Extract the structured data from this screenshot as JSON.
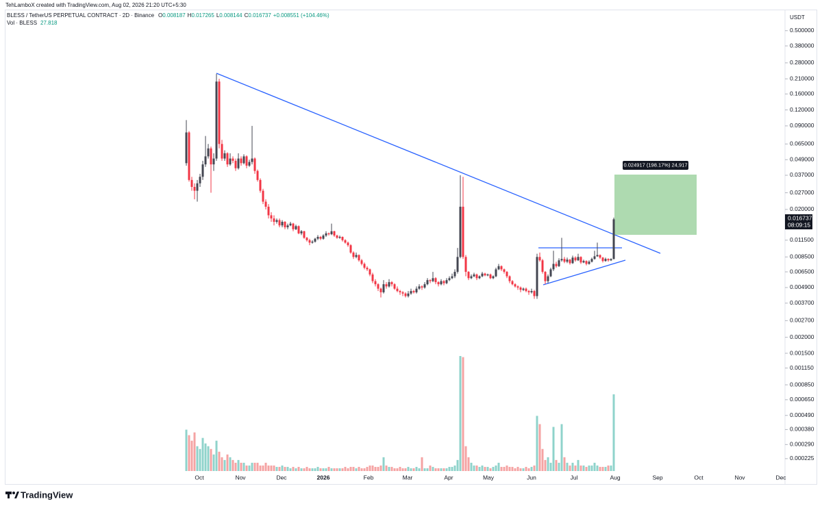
{
  "chart_data": {
    "type": "candlestick",
    "credit": "TehLamboX created with TradingView.com, Aug 02, 2026 21:20 UTC+5:30",
    "title": "BLESS / TetherUS PERPETUAL CONTRACT · 2D · Binance",
    "ohlc_labels": [
      "O",
      "H",
      "L",
      "C"
    ],
    "change_label": "+0.008551 (+104.46%)",
    "volume_label": "Vol · BLESS",
    "currency": "USDT",
    "countdown": "08:09:15",
    "measure_label": "0.024917 (198.17%) 24,917",
    "brand": "TradingView",
    "log_scale": true,
    "grid": false,
    "up_color": "#434651",
    "down_color": "#f23645",
    "volume_up_color": "#8fd3cb",
    "volume_down_color": "#f5a3a3",
    "ylim": [
      0.00018,
      0.6
    ],
    "yticks": [
      {
        "value": 0.5,
        "label": "0.500000"
      },
      {
        "value": 0.38,
        "label": "0.380000"
      },
      {
        "value": 0.28,
        "label": "0.280000"
      },
      {
        "value": 0.21,
        "label": "0.210000"
      },
      {
        "value": 0.16,
        "label": "0.160000"
      },
      {
        "value": 0.12,
        "label": "0.120000"
      },
      {
        "value": 0.09,
        "label": "0.090000"
      },
      {
        "value": 0.065,
        "label": "0.065000"
      },
      {
        "value": 0.049,
        "label": "0.049000"
      },
      {
        "value": 0.037,
        "label": "0.037000"
      },
      {
        "value": 0.027,
        "label": "0.027000"
      },
      {
        "value": 0.02,
        "label": "0.020000"
      },
      {
        "value": 0.0115,
        "label": "0.011500"
      },
      {
        "value": 0.0085,
        "label": "0.008500"
      },
      {
        "value": 0.0065,
        "label": "0.006500"
      },
      {
        "value": 0.0049,
        "label": "0.004900"
      },
      {
        "value": 0.0037,
        "label": "0.003700"
      },
      {
        "value": 0.0027,
        "label": "0.002700"
      },
      {
        "value": 0.002,
        "label": "0.002000"
      },
      {
        "value": 0.0015,
        "label": "0.001500"
      },
      {
        "value": 0.00115,
        "label": "0.001150"
      },
      {
        "value": 0.00085,
        "label": "0.000850"
      },
      {
        "value": 0.00065,
        "label": "0.000650"
      },
      {
        "value": 0.00049,
        "label": "0.000490"
      },
      {
        "value": 0.00038,
        "label": "0.000380"
      },
      {
        "value": 0.00029,
        "label": "0.000290"
      },
      {
        "value": 0.000225,
        "label": "0.000225"
      }
    ],
    "xticks": [
      "Oct",
      "Nov",
      "Dec",
      "2026",
      "Feb",
      "Mar",
      "Apr",
      "May",
      "Jun",
      "Jul",
      "Aug",
      "Sep",
      "Oct",
      "Nov",
      "Dec"
    ],
    "candles": [
      [
        0.046,
        0.1,
        0.044,
        0.08
      ],
      [
        0.08,
        0.082,
        0.033,
        0.034
      ],
      [
        0.034,
        0.036,
        0.028,
        0.03
      ],
      [
        0.03,
        0.032,
        0.024,
        0.028
      ],
      [
        0.028,
        0.034,
        0.023,
        0.032
      ],
      [
        0.032,
        0.038,
        0.03,
        0.036
      ],
      [
        0.036,
        0.048,
        0.034,
        0.045
      ],
      [
        0.045,
        0.075,
        0.043,
        0.052
      ],
      [
        0.052,
        0.065,
        0.05,
        0.06
      ],
      [
        0.06,
        0.062,
        0.027,
        0.045
      ],
      [
        0.045,
        0.055,
        0.04,
        0.05
      ],
      [
        0.05,
        0.23,
        0.048,
        0.2
      ],
      [
        0.2,
        0.21,
        0.06,
        0.065
      ],
      [
        0.065,
        0.07,
        0.048,
        0.05
      ],
      [
        0.05,
        0.058,
        0.048,
        0.055
      ],
      [
        0.055,
        0.056,
        0.043,
        0.045
      ],
      [
        0.045,
        0.055,
        0.044,
        0.05
      ],
      [
        0.05,
        0.052,
        0.046,
        0.048
      ],
      [
        0.048,
        0.05,
        0.04,
        0.042
      ],
      [
        0.042,
        0.055,
        0.041,
        0.05
      ],
      [
        0.05,
        0.052,
        0.044,
        0.046
      ],
      [
        0.046,
        0.054,
        0.045,
        0.052
      ],
      [
        0.052,
        0.053,
        0.042,
        0.044
      ],
      [
        0.044,
        0.049,
        0.043,
        0.047
      ],
      [
        0.047,
        0.09,
        0.045,
        0.05
      ],
      [
        0.05,
        0.051,
        0.038,
        0.04
      ],
      [
        0.04,
        0.041,
        0.033,
        0.034
      ],
      [
        0.034,
        0.035,
        0.027,
        0.028
      ],
      [
        0.028,
        0.029,
        0.022,
        0.023
      ],
      [
        0.023,
        0.024,
        0.02,
        0.021
      ],
      [
        0.021,
        0.022,
        0.017,
        0.018
      ],
      [
        0.018,
        0.019,
        0.016,
        0.017
      ],
      [
        0.017,
        0.018,
        0.015,
        0.016
      ],
      [
        0.016,
        0.017,
        0.0155,
        0.0165
      ],
      [
        0.0165,
        0.017,
        0.0145,
        0.015
      ],
      [
        0.015,
        0.0165,
        0.0145,
        0.016
      ],
      [
        0.016,
        0.0162,
        0.014,
        0.0145
      ],
      [
        0.0145,
        0.0155,
        0.014,
        0.015
      ],
      [
        0.015,
        0.016,
        0.0148,
        0.0155
      ],
      [
        0.0155,
        0.0157,
        0.0135,
        0.014
      ],
      [
        0.014,
        0.0152,
        0.0138,
        0.0148
      ],
      [
        0.0148,
        0.015,
        0.0128,
        0.013
      ],
      [
        0.013,
        0.0138,
        0.0126,
        0.0135
      ],
      [
        0.0135,
        0.0136,
        0.0118,
        0.012
      ],
      [
        0.012,
        0.0122,
        0.0112,
        0.0115
      ],
      [
        0.0115,
        0.0118,
        0.0105,
        0.011
      ],
      [
        0.011,
        0.0115,
        0.0108,
        0.0112
      ],
      [
        0.0112,
        0.012,
        0.011,
        0.0118
      ],
      [
        0.0118,
        0.0126,
        0.0115,
        0.0122
      ],
      [
        0.0122,
        0.0124,
        0.0115,
        0.0118
      ],
      [
        0.0118,
        0.0128,
        0.0116,
        0.0125
      ],
      [
        0.0125,
        0.0135,
        0.0122,
        0.013
      ],
      [
        0.013,
        0.0132,
        0.0125,
        0.0128
      ],
      [
        0.0128,
        0.0155,
        0.0126,
        0.0135
      ],
      [
        0.0135,
        0.0136,
        0.0122,
        0.0125
      ],
      [
        0.0125,
        0.0127,
        0.0118,
        0.012
      ],
      [
        0.012,
        0.0125,
        0.0118,
        0.0122
      ],
      [
        0.0122,
        0.0123,
        0.0112,
        0.0115
      ],
      [
        0.0115,
        0.0117,
        0.0108,
        0.011
      ],
      [
        0.011,
        0.0112,
        0.0102,
        0.0105
      ],
      [
        0.0105,
        0.0107,
        0.009,
        0.0092
      ],
      [
        0.0092,
        0.0094,
        0.0082,
        0.0085
      ],
      [
        0.0085,
        0.0092,
        0.0083,
        0.0088
      ],
      [
        0.0088,
        0.0089,
        0.0078,
        0.008
      ],
      [
        0.008,
        0.0082,
        0.0073,
        0.0075
      ],
      [
        0.0075,
        0.0077,
        0.0068,
        0.007
      ],
      [
        0.007,
        0.0072,
        0.0066,
        0.0068
      ],
      [
        0.0068,
        0.0069,
        0.006,
        0.0062
      ],
      [
        0.0062,
        0.0064,
        0.0053,
        0.0055
      ],
      [
        0.0055,
        0.0057,
        0.005,
        0.0052
      ],
      [
        0.0052,
        0.0053,
        0.0046,
        0.0048
      ],
      [
        0.0048,
        0.0049,
        0.0041,
        0.0045
      ],
      [
        0.0045,
        0.0056,
        0.0044,
        0.0052
      ],
      [
        0.0052,
        0.0054,
        0.0048,
        0.005
      ],
      [
        0.005,
        0.0057,
        0.0049,
        0.0054
      ],
      [
        0.0054,
        0.0055,
        0.005,
        0.0052
      ],
      [
        0.0052,
        0.0053,
        0.0047,
        0.0048
      ],
      [
        0.0048,
        0.005,
        0.0045,
        0.0046
      ],
      [
        0.0046,
        0.0047,
        0.0043,
        0.0045
      ],
      [
        0.0045,
        0.0046,
        0.0042,
        0.0044
      ],
      [
        0.0044,
        0.0045,
        0.0041,
        0.0042
      ],
      [
        0.0042,
        0.0046,
        0.0041,
        0.0044
      ],
      [
        0.0044,
        0.0048,
        0.0043,
        0.0046
      ],
      [
        0.0046,
        0.0047,
        0.0044,
        0.0045
      ],
      [
        0.0045,
        0.005,
        0.0044,
        0.0048
      ],
      [
        0.0048,
        0.0052,
        0.0047,
        0.005
      ],
      [
        0.005,
        0.0051,
        0.0047,
        0.0049
      ],
      [
        0.0049,
        0.0054,
        0.0048,
        0.0052
      ],
      [
        0.0052,
        0.0058,
        0.0051,
        0.0056
      ],
      [
        0.0056,
        0.0057,
        0.0053,
        0.0055
      ],
      [
        0.0055,
        0.0065,
        0.0054,
        0.0058
      ],
      [
        0.0058,
        0.0059,
        0.0052,
        0.0054
      ],
      [
        0.0054,
        0.0055,
        0.005,
        0.0052
      ],
      [
        0.0052,
        0.0057,
        0.0051,
        0.0055
      ],
      [
        0.0055,
        0.0056,
        0.0051,
        0.0053
      ],
      [
        0.0053,
        0.0058,
        0.0052,
        0.0056
      ],
      [
        0.0056,
        0.006,
        0.0055,
        0.0058
      ],
      [
        0.0058,
        0.0063,
        0.0057,
        0.006
      ],
      [
        0.006,
        0.0068,
        0.0058,
        0.0065
      ],
      [
        0.0065,
        0.01,
        0.0063,
        0.0085
      ],
      [
        0.0085,
        0.037,
        0.0083,
        0.021
      ],
      [
        0.021,
        0.036,
        0.0082,
        0.0085
      ],
      [
        0.0085,
        0.0088,
        0.006,
        0.0065
      ],
      [
        0.0065,
        0.0066,
        0.0056,
        0.0058
      ],
      [
        0.0058,
        0.0062,
        0.0057,
        0.006
      ],
      [
        0.006,
        0.0064,
        0.0059,
        0.0062
      ],
      [
        0.0062,
        0.0063,
        0.0056,
        0.0058
      ],
      [
        0.0058,
        0.0061,
        0.0057,
        0.006
      ],
      [
        0.006,
        0.0065,
        0.0059,
        0.0063
      ],
      [
        0.0063,
        0.0064,
        0.006,
        0.0061
      ],
      [
        0.0061,
        0.0063,
        0.006,
        0.0062
      ],
      [
        0.0062,
        0.0063,
        0.0057,
        0.0058
      ],
      [
        0.0058,
        0.0061,
        0.0057,
        0.006
      ],
      [
        0.006,
        0.007,
        0.0059,
        0.0068
      ],
      [
        0.0068,
        0.0075,
        0.0067,
        0.0072
      ],
      [
        0.0072,
        0.0073,
        0.0066,
        0.0068
      ],
      [
        0.0068,
        0.0069,
        0.0063,
        0.0065
      ],
      [
        0.0065,
        0.0066,
        0.0058,
        0.006
      ],
      [
        0.006,
        0.0061,
        0.0053,
        0.0055
      ],
      [
        0.0055,
        0.0056,
        0.0051,
        0.0052
      ],
      [
        0.0052,
        0.0053,
        0.0049,
        0.005
      ],
      [
        0.005,
        0.0051,
        0.0047,
        0.0049
      ],
      [
        0.0049,
        0.005,
        0.0045,
        0.0047
      ],
      [
        0.0047,
        0.0049,
        0.0046,
        0.0048
      ],
      [
        0.0048,
        0.0049,
        0.0045,
        0.0046
      ],
      [
        0.0046,
        0.0047,
        0.0043,
        0.0045
      ],
      [
        0.0045,
        0.0048,
        0.0044,
        0.0046
      ],
      [
        0.0046,
        0.0047,
        0.004,
        0.0042
      ],
      [
        0.0042,
        0.009,
        0.004,
        0.0085
      ],
      [
        0.0085,
        0.0092,
        0.0078,
        0.008
      ],
      [
        0.008,
        0.0082,
        0.0063,
        0.0065
      ],
      [
        0.0065,
        0.0066,
        0.0052,
        0.0055
      ],
      [
        0.0055,
        0.0062,
        0.0053,
        0.006
      ],
      [
        0.006,
        0.007,
        0.0059,
        0.0068
      ],
      [
        0.0068,
        0.0095,
        0.0066,
        0.0075
      ],
      [
        0.0075,
        0.0078,
        0.007,
        0.0072
      ],
      [
        0.0072,
        0.0083,
        0.0071,
        0.008
      ],
      [
        0.008,
        0.012,
        0.0078,
        0.0082
      ],
      [
        0.0082,
        0.0085,
        0.0076,
        0.0078
      ],
      [
        0.0078,
        0.0084,
        0.0076,
        0.0081
      ],
      [
        0.0081,
        0.0082,
        0.0074,
        0.0076
      ],
      [
        0.0076,
        0.0087,
        0.0075,
        0.0084
      ],
      [
        0.0084,
        0.0086,
        0.0078,
        0.008
      ],
      [
        0.008,
        0.009,
        0.0079,
        0.0085
      ],
      [
        0.0085,
        0.0086,
        0.0075,
        0.0077
      ],
      [
        0.0077,
        0.0081,
        0.0076,
        0.0079
      ],
      [
        0.0079,
        0.008,
        0.0073,
        0.0075
      ],
      [
        0.0075,
        0.008,
        0.0074,
        0.0078
      ],
      [
        0.0078,
        0.0084,
        0.0077,
        0.0082
      ],
      [
        0.0082,
        0.0095,
        0.0081,
        0.0086
      ],
      [
        0.0086,
        0.011,
        0.0085,
        0.0088
      ],
      [
        0.0088,
        0.0089,
        0.0082,
        0.0084
      ],
      [
        0.0084,
        0.0085,
        0.0077,
        0.0079
      ],
      [
        0.0079,
        0.0084,
        0.0078,
        0.0082
      ],
      [
        0.0082,
        0.0083,
        0.0078,
        0.008
      ],
      [
        0.008,
        0.0083,
        0.0079,
        0.008187
      ],
      [
        0.008187,
        0.017265,
        0.008144,
        0.016737
      ]
    ],
    "volume": [
      15,
      13,
      11,
      14,
      9,
      8,
      12,
      10,
      9,
      8,
      6,
      11,
      7,
      5,
      4,
      6,
      5,
      4,
      3,
      4,
      3,
      3,
      2,
      2,
      3,
      3,
      3,
      2,
      2,
      3,
      2,
      2,
      2,
      1.5,
      1.5,
      2,
      1.5,
      1.5,
      1,
      1.5,
      1,
      1.5,
      1,
      1,
      1.5,
      1,
      1,
      1,
      1.5,
      1,
      1,
      1,
      1.5,
      1,
      1,
      1,
      1,
      1,
      1.5,
      1,
      1.5,
      1.5,
      1,
      1.5,
      1,
      1,
      1.5,
      2,
      2,
      1.5,
      1.5,
      2,
      5,
      2,
      1.5,
      1.5,
      1,
      1,
      1.5,
      1,
      1,
      1.5,
      1,
      1,
      1.5,
      1,
      5,
      1,
      1,
      2,
      1.5,
      1,
      1,
      1,
      1,
      1,
      1.5,
      1.5,
      2,
      4,
      41.7,
      41.3,
      9,
      5,
      3,
      2,
      2,
      1.5,
      2,
      1.5,
      1.5,
      1,
      1.5,
      2,
      3,
      1.5,
      1.5,
      2,
      1.5,
      1.5,
      1,
      1.5,
      1,
      1,
      1.5,
      1,
      1.5,
      2,
      20,
      17,
      8,
      4,
      5,
      3,
      16,
      4,
      3,
      17,
      5,
      3,
      2,
      3,
      2,
      4,
      2,
      2,
      1.5,
      2,
      2,
      3,
      2,
      1.5,
      1.5,
      1.5,
      2,
      2,
      27.818
    ]
  }
}
